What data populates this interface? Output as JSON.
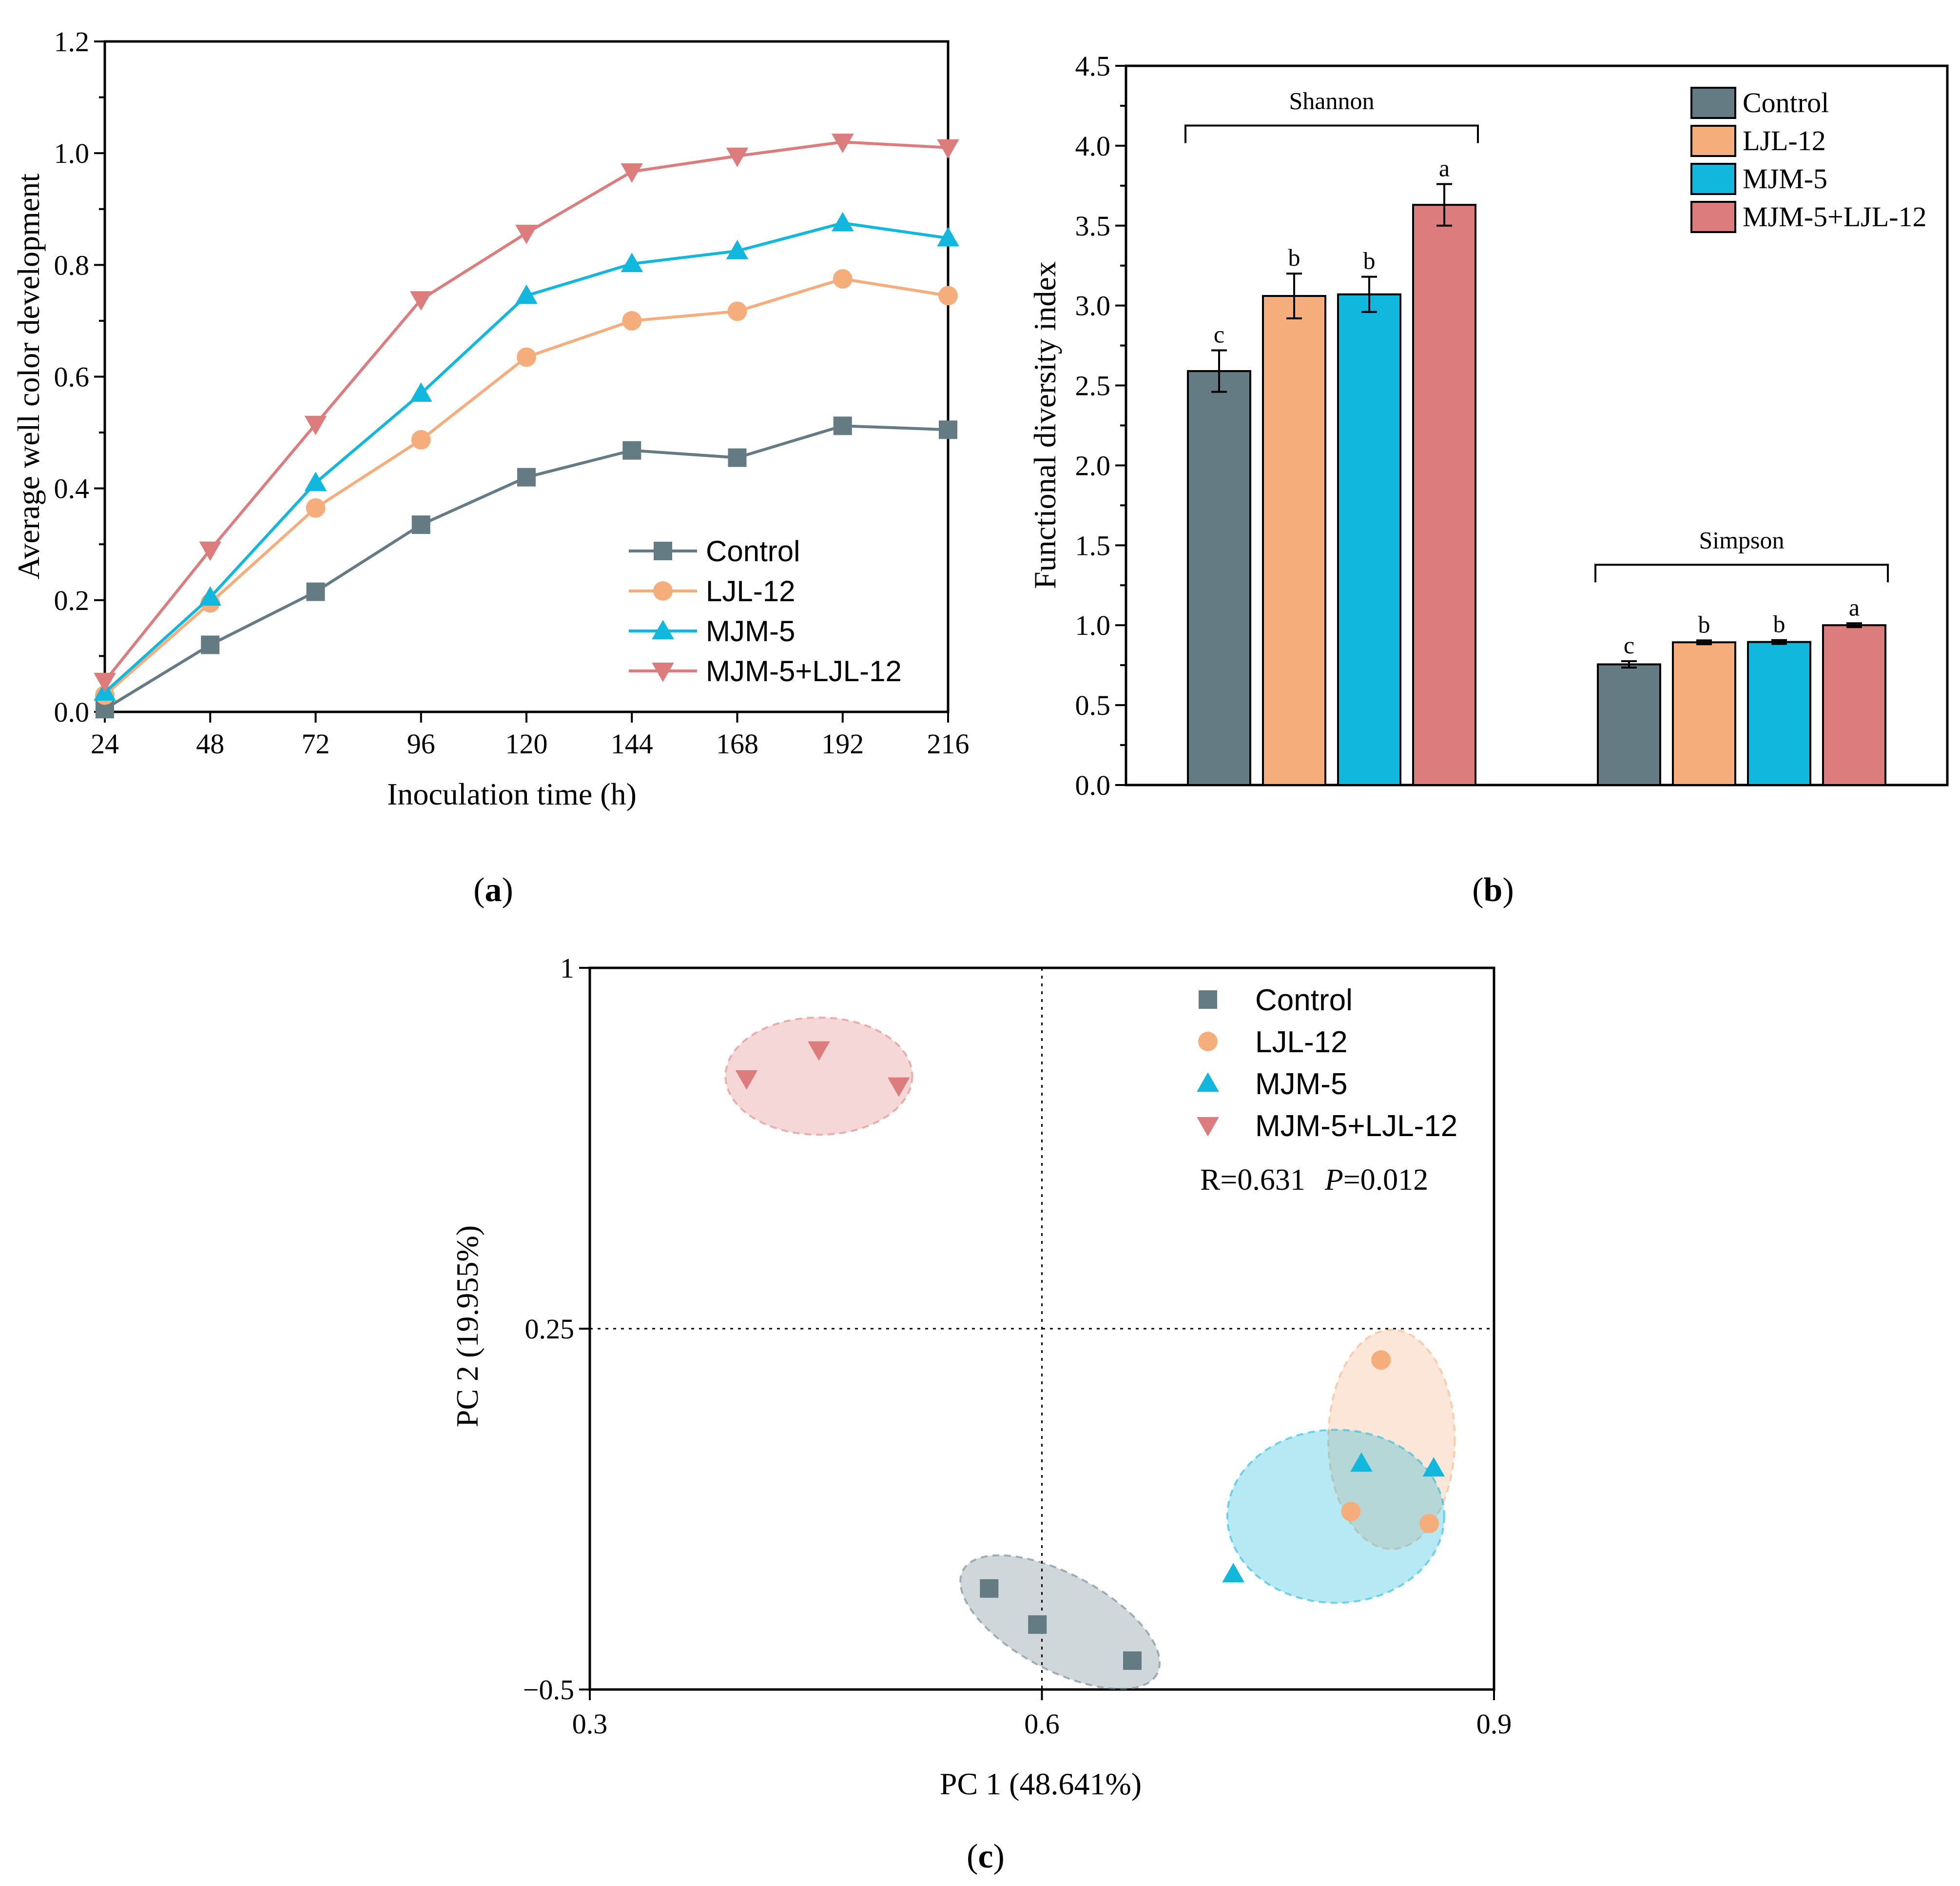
{
  "colors": {
    "control": "#657b84",
    "ljl12": "#f5ad7b",
    "mjm5": "#11b7dc",
    "combo": "#dd7c7c"
  },
  "chart_data": [
    {
      "panel": "a",
      "panel_label": "a",
      "type": "line",
      "xlabel": "Inoculation time (h)",
      "ylabel": "Average well color development",
      "x": [
        24,
        48,
        72,
        96,
        120,
        144,
        168,
        192,
        216
      ],
      "x_ticks": [
        "24",
        "48",
        "72",
        "96",
        "120",
        "144",
        "168",
        "192",
        "216"
      ],
      "y_ticks": [
        "0.0",
        "0.2",
        "0.4",
        "0.6",
        "0.8",
        "1.0",
        "1.2"
      ],
      "ylim": [
        0,
        1.2
      ],
      "legend_position": "lower-right",
      "series": [
        {
          "name": "Control",
          "marker": "square",
          "color_key": "control",
          "values": [
            0.005,
            0.12,
            0.215,
            0.335,
            0.42,
            0.468,
            0.455,
            0.512,
            0.505
          ]
        },
        {
          "name": "LJL-12",
          "marker": "circle",
          "color_key": "ljl12",
          "values": [
            0.03,
            0.195,
            0.365,
            0.487,
            0.635,
            0.7,
            0.717,
            0.775,
            0.745
          ]
        },
        {
          "name": "MJM-5",
          "marker": "triangle-up",
          "color_key": "mjm5",
          "values": [
            0.035,
            0.205,
            0.41,
            0.57,
            0.745,
            0.802,
            0.825,
            0.875,
            0.848
          ]
        },
        {
          "name": "MJM-5+LJL-12",
          "marker": "triangle-down",
          "color_key": "combo",
          "values": [
            0.055,
            0.29,
            0.515,
            0.738,
            0.857,
            0.967,
            0.995,
            1.02,
            1.01
          ]
        }
      ]
    },
    {
      "panel": "b",
      "panel_label": "b",
      "type": "bar",
      "ylabel": "Functional diversity index",
      "y_ticks": [
        "0.0",
        "0.5",
        "1.0",
        "1.5",
        "2.0",
        "2.5",
        "3.0",
        "3.5",
        "4.0",
        "4.5"
      ],
      "ylim": [
        0,
        4.5
      ],
      "legend_position": "top-right",
      "legend": [
        "Control",
        "LJL-12",
        "MJM-5",
        "MJM-5+LJL-12"
      ],
      "groups": [
        {
          "label": "Shannon",
          "bars": [
            {
              "series": "Control",
              "color_key": "control",
              "value": 2.59,
              "error": 0.13,
              "letter": "c"
            },
            {
              "series": "LJL-12",
              "color_key": "ljl12",
              "value": 3.06,
              "error": 0.14,
              "letter": "b"
            },
            {
              "series": "MJM-5",
              "color_key": "mjm5",
              "value": 3.07,
              "error": 0.11,
              "letter": "b"
            },
            {
              "series": "MJM-5+LJL-12",
              "color_key": "combo",
              "value": 3.63,
              "error": 0.13,
              "letter": "a"
            }
          ]
        },
        {
          "label": "Simpson",
          "bars": [
            {
              "series": "Control",
              "color_key": "control",
              "value": 0.755,
              "error": 0.02,
              "letter": "c"
            },
            {
              "series": "LJL-12",
              "color_key": "ljl12",
              "value": 0.893,
              "error": 0.012,
              "letter": "b"
            },
            {
              "series": "MJM-5",
              "color_key": "mjm5",
              "value": 0.895,
              "error": 0.012,
              "letter": "b"
            },
            {
              "series": "MJM-5+LJL-12",
              "color_key": "combo",
              "value": 1.0,
              "error": 0.012,
              "letter": "a"
            }
          ]
        }
      ]
    },
    {
      "panel": "c",
      "panel_label": "c",
      "type": "scatter",
      "xlabel": "PC 1 (48.641%)",
      "ylabel": "PC 2 (19.955%)",
      "x_ticks": [
        "0.3",
        "0.6",
        "0.9"
      ],
      "x_tick_values": [
        0.3,
        0.6,
        0.9
      ],
      "y_ticks": [
        "−0.5",
        "0.25",
        "1"
      ],
      "y_tick_values": [
        -0.5,
        0.25,
        1
      ],
      "xlim": [
        0.3,
        0.9
      ],
      "ylim": [
        -0.5,
        1
      ],
      "reference_lines": {
        "x": 0.6,
        "y": 0.25
      },
      "legend_position": "top-right",
      "stat_r": "R=0.631",
      "stat_p_label": "P",
      "stat_p_value": "=0.012",
      "series": [
        {
          "name": "Control",
          "marker": "square",
          "color_key": "control",
          "points": [
            [
              0.565,
              -0.29
            ],
            [
              0.597,
              -0.365
            ],
            [
              0.66,
              -0.44
            ]
          ],
          "ellipse": {
            "cx": 0.612,
            "cy": -0.36,
            "rx": 0.073,
            "ry": 0.1,
            "angle_deg": 28
          }
        },
        {
          "name": "LJL-12",
          "marker": "circle",
          "color_key": "ljl12",
          "points": [
            [
              0.825,
              0.185
            ],
            [
              0.805,
              -0.13
            ],
            [
              0.857,
              -0.155
            ]
          ],
          "ellipse": {
            "cx": 0.832,
            "cy": 0.02,
            "rx": 0.042,
            "ry": 0.228,
            "angle_deg": 0
          }
        },
        {
          "name": "MJM-5",
          "marker": "triangle-up",
          "color_key": "mjm5",
          "points": [
            [
              0.812,
              -0.03
            ],
            [
              0.86,
              -0.04
            ],
            [
              0.727,
              -0.26
            ]
          ],
          "ellipse": {
            "cx": 0.795,
            "cy": -0.14,
            "rx": 0.072,
            "ry": 0.18,
            "angle_deg": 0
          }
        },
        {
          "name": "MJM-5+LJL-12",
          "marker": "triangle-down",
          "color_key": "combo",
          "points": [
            [
              0.404,
              0.77
            ],
            [
              0.452,
              0.83
            ],
            [
              0.505,
              0.755
            ]
          ],
          "ellipse": {
            "cx": 0.452,
            "cy": 0.775,
            "rx": 0.062,
            "ry": 0.122,
            "angle_deg": 0
          }
        }
      ]
    }
  ]
}
